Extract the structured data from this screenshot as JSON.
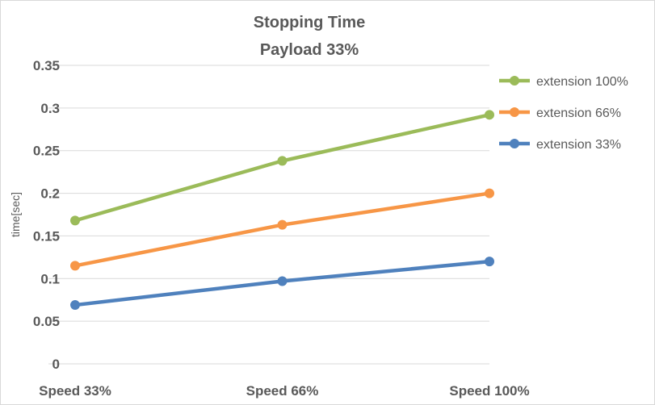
{
  "chart_data": {
    "type": "line",
    "title": "Stopping Time",
    "subtitle": "Payload 33%",
    "xlabel": "",
    "ylabel": "time[sec]",
    "categories": [
      "Speed 33%",
      "Speed 66%",
      "Speed 100%"
    ],
    "ylim": [
      0,
      0.35
    ],
    "yticks": [
      "0",
      "0.05",
      "0.1",
      "0.15",
      "0.2",
      "0.25",
      "0.3",
      "0.35"
    ],
    "grid": true,
    "legend_position": "right",
    "series": [
      {
        "name": "extension 100%",
        "color": "#9bbb59",
        "values": [
          0.168,
          0.238,
          0.292
        ]
      },
      {
        "name": "extension 66%",
        "color": "#f79646",
        "values": [
          0.115,
          0.163,
          0.2
        ]
      },
      {
        "name": "extension 33%",
        "color": "#4f81bd",
        "values": [
          0.069,
          0.097,
          0.12
        ]
      }
    ]
  }
}
